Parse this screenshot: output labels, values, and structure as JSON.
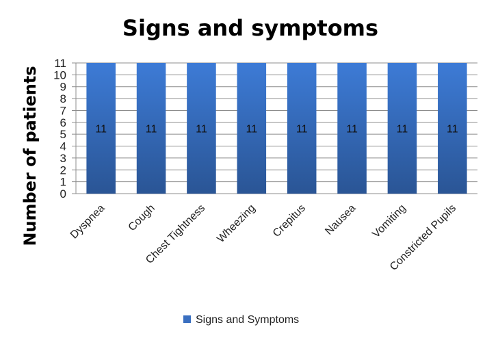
{
  "chart_data": {
    "type": "bar",
    "title": "Signs and symptoms",
    "xlabel": "",
    "ylabel": "Number of patients",
    "categories": [
      "Dyspnea",
      "Cough",
      "Chest Tightness",
      "Wheezing",
      "Crepitus",
      "Nausea",
      "Vomiting",
      "Constricted Pupils"
    ],
    "series": [
      {
        "name": "Signs and Symptoms",
        "values": [
          11,
          11,
          11,
          11,
          11,
          11,
          11,
          11
        ],
        "color": "#3a6fc0"
      }
    ],
    "ylim": [
      0,
      11
    ],
    "yticks": [
      "0",
      "1",
      "2",
      "3",
      "4",
      "5",
      "6",
      "7",
      "8",
      "9",
      "10",
      "11"
    ],
    "data_labels": [
      "11",
      "11",
      "11",
      "11",
      "11",
      "11",
      "11",
      "11"
    ],
    "grid": true,
    "legend_position": "bottom"
  }
}
